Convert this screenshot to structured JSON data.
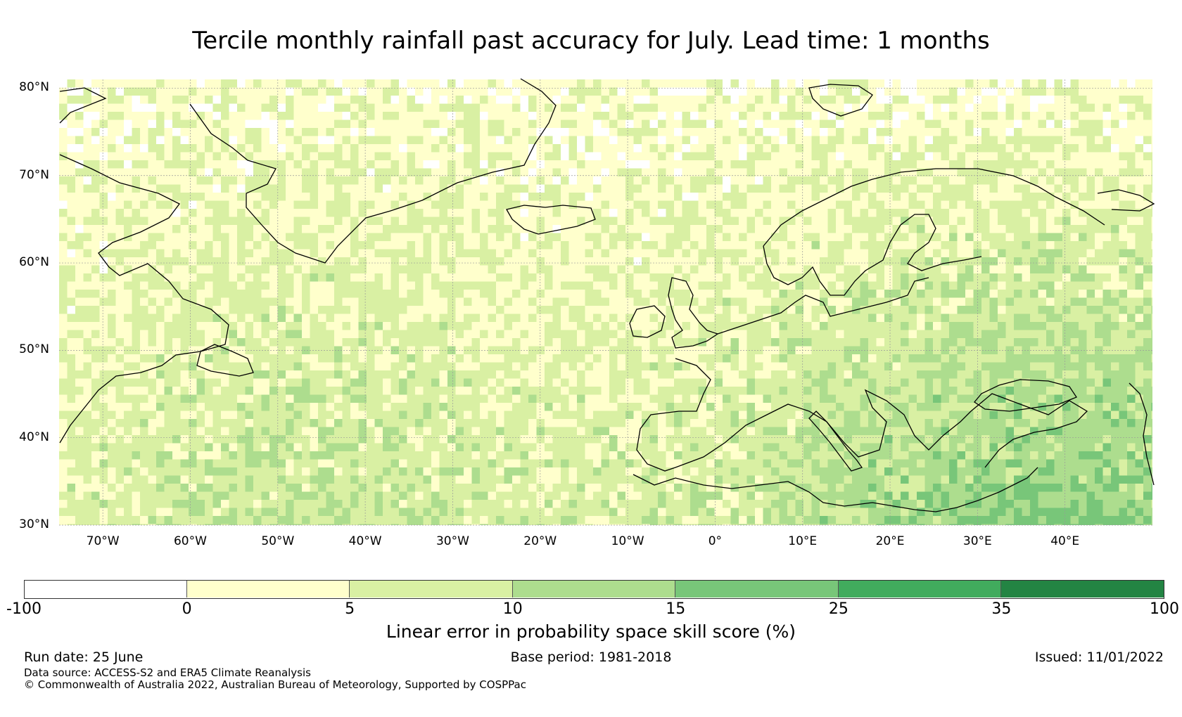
{
  "title": "Tercile monthly rainfall past accuracy for July. Lead time: 1 months",
  "lat_labels": [
    "80°N",
    "70°N",
    "60°N",
    "50°N",
    "40°N",
    "30°N"
  ],
  "lon_labels": [
    "70°W",
    "60°W",
    "50°W",
    "40°W",
    "30°W",
    "20°W",
    "10°W",
    "0°",
    "10°E",
    "20°E",
    "30°E",
    "40°E"
  ],
  "map": {
    "lat_range": [
      30,
      81
    ],
    "lon_range": [
      -75,
      50
    ],
    "land_outline_color": "#000000",
    "gridline_color": "#999999"
  },
  "colorbar": {
    "label": "Linear error in probability space skill score (%)",
    "ticks": [
      "-100",
      "0",
      "5",
      "10",
      "15",
      "25",
      "35",
      "100"
    ],
    "bins": [
      {
        "range": "-100 to 0",
        "color": "#ffffff"
      },
      {
        "range": "0 to 5",
        "color": "#ffffcc"
      },
      {
        "range": "5 to 10",
        "color": "#d9f0a3"
      },
      {
        "range": "10 to 15",
        "color": "#addd8e"
      },
      {
        "range": "15 to 25",
        "color": "#78c679"
      },
      {
        "range": "25 to 35",
        "color": "#41ab5d"
      },
      {
        "range": "35 to 100",
        "color": "#238443"
      }
    ]
  },
  "footer": {
    "run_date": "Run date: 25 June",
    "base_period": "Base period: 1981-2018",
    "issued": "Issued: 11/01/2022",
    "data_source": "Data source: ACCESS-S2 and ERA5 Climate Reanalysis",
    "copyright": "© Commonwealth of Australia 2022, Australian Bureau of Meteorology, Supported by COSPPac"
  }
}
